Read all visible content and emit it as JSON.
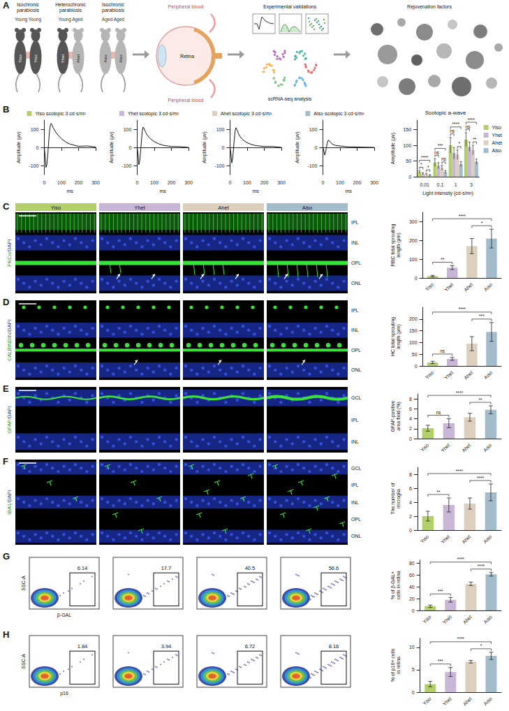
{
  "figure": {
    "panel_letters": [
      "A",
      "B",
      "C",
      "D",
      "E",
      "F",
      "G",
      "H"
    ],
    "parabiosis": [
      {
        "title": "Isochronic parabiosis",
        "subtitle": "Young Young",
        "mice": [
          "Yiso",
          "Yiso"
        ],
        "colors": [
          "#555555",
          "#555555"
        ]
      },
      {
        "title": "Heterochronic parabiosis",
        "subtitle": "Young Aged",
        "mice": [
          "Yhet",
          "Ahet"
        ],
        "colors": [
          "#555555",
          "#b5b5b5"
        ]
      },
      {
        "title": "Isochronic parabiosis",
        "subtitle": "Aged Aged",
        "mice": [
          "Aiso",
          "Aiso"
        ],
        "colors": [
          "#b5b5b5",
          "#b5b5b5"
        ]
      }
    ],
    "eye_labels": [
      "Peripheral blood",
      "Retina",
      "Peripheral blood"
    ],
    "steps": [
      "Experimental validations",
      "scRNA-seq analysis",
      "Rejuvenation factors"
    ],
    "image_panels": [
      {
        "stain": "PKCα/DAPI",
        "columns": [
          {
            "name": "Yiso",
            "color": "#b3cf6a"
          },
          {
            "name": "Yhet",
            "color": "#c9b6d6"
          },
          {
            "name": "Ahet",
            "color": "#dccfbd"
          },
          {
            "name": "Aiso",
            "color": "#a3bccb"
          }
        ],
        "layers": [
          "IPL",
          "INL",
          "OPL",
          "ONL"
        ]
      },
      {
        "stain": "CALBINDIN/DAPI",
        "layers": [
          "IPL",
          "INL",
          "OPL",
          "ONL"
        ]
      },
      {
        "stain": "GFAP/DAPI",
        "layers": [
          "GCL",
          "IPL",
          "INL"
        ]
      },
      {
        "stain": "IBA1/DAPI",
        "layers": [
          "GCL",
          "IPL",
          "INL",
          "OPL",
          "ONL"
        ]
      }
    ],
    "flow_panels": [
      {
        "x_label": "β-GAL",
        "y_label": "SSC-A",
        "gates": [
          6.14,
          17.7,
          40.5,
          56.6
        ]
      },
      {
        "x_label": "p16",
        "y_label": "SSC-A",
        "gates": [
          1.84,
          3.94,
          6.72,
          8.16
        ]
      }
    ]
  },
  "chart_data": [
    {
      "type": "line",
      "legend": "top",
      "x_label": "ms",
      "y_label": "Amplitude (μv)",
      "x": [
        0,
        5,
        10,
        15,
        20,
        25,
        30,
        35,
        40,
        45,
        50,
        60,
        70,
        80,
        100,
        125,
        150,
        200,
        250,
        300
      ],
      "xlim": [
        0,
        300
      ],
      "xticks": [
        0,
        100,
        200,
        300
      ],
      "ylim": [
        -150,
        150
      ],
      "yticks": [
        -100,
        0,
        100
      ],
      "series": [
        {
          "name": "Yiso scotopic 3 cd·s/m²",
          "color": "#b3cf6a",
          "values": [
            0,
            -45,
            -110,
            -95,
            -45,
            20,
            85,
            120,
            132,
            125,
            112,
            95,
            80,
            68,
            48,
            30,
            18,
            6,
            8,
            2
          ]
        }
      ]
    },
    {
      "type": "line",
      "legend": "top",
      "x_label": "ms",
      "y_label": "Amplitude (μv)",
      "x": [
        0,
        5,
        10,
        15,
        20,
        25,
        30,
        35,
        40,
        45,
        50,
        60,
        70,
        80,
        100,
        125,
        150,
        200,
        250,
        300
      ],
      "xlim": [
        0,
        300
      ],
      "xticks": [
        0,
        100,
        200,
        300
      ],
      "ylim": [
        -150,
        150
      ],
      "yticks": [
        -100,
        0,
        100
      ],
      "series": [
        {
          "name": "Yhet scotopic 3 cd·s/m²",
          "color": "#c9b6d6",
          "values": [
            0,
            -35,
            -95,
            -75,
            -25,
            35,
            90,
            112,
            105,
            95,
            82,
            66,
            55,
            45,
            32,
            20,
            12,
            5,
            4,
            0
          ]
        }
      ]
    },
    {
      "type": "line",
      "legend": "top",
      "x_label": "ms",
      "y_label": "Amplitude (μv)",
      "x": [
        0,
        5,
        10,
        15,
        20,
        25,
        30,
        35,
        40,
        45,
        50,
        60,
        70,
        80,
        100,
        125,
        150,
        200,
        250,
        300
      ],
      "xlim": [
        0,
        300
      ],
      "xticks": [
        0,
        100,
        200,
        300
      ],
      "ylim": [
        -150,
        150
      ],
      "yticks": [
        -100,
        0,
        100
      ],
      "series": [
        {
          "name": "Ahet scotopic 3 cd·s/m²",
          "color": "#dccfbd",
          "values": [
            0,
            -30,
            -85,
            -65,
            -15,
            45,
            92,
            108,
            98,
            88,
            74,
            58,
            47,
            38,
            26,
            16,
            10,
            5,
            5,
            0
          ]
        }
      ]
    },
    {
      "type": "line",
      "legend": "top",
      "x_label": "ms",
      "y_label": "Amplitude (μv)",
      "x": [
        0,
        5,
        10,
        15,
        20,
        25,
        30,
        35,
        40,
        45,
        50,
        60,
        70,
        80,
        100,
        125,
        150,
        200,
        250,
        300
      ],
      "xlim": [
        0,
        300
      ],
      "xticks": [
        0,
        100,
        200,
        300
      ],
      "ylim": [
        -150,
        150
      ],
      "yticks": [
        -100,
        0,
        100
      ],
      "series": [
        {
          "name": "Aiso scotopic 3 cd·s/m²",
          "color": "#a3bccb",
          "values": [
            0,
            -15,
            -42,
            -30,
            -5,
            22,
            38,
            40,
            34,
            28,
            22,
            16,
            12,
            10,
            8,
            5,
            3,
            2,
            1,
            0
          ]
        }
      ]
    },
    {
      "type": "bar",
      "title": "Scotopic a-wave",
      "x_label": "Light intensity (cd·s/m²)",
      "y_label": "Amplitude (μv)",
      "legend": "right",
      "categories": [
        "0.01",
        "0.1",
        "1",
        "3"
      ],
      "ylim": [
        0,
        180
      ],
      "yticks": [
        0,
        50,
        100,
        150
      ],
      "series": [
        {
          "name": "Yiso",
          "color": "#b3cf6a",
          "values": [
            15,
            45,
            100,
            118
          ],
          "errors": [
            4,
            12,
            25,
            22
          ]
        },
        {
          "name": "Yhet",
          "color": "#c9b6d6",
          "values": [
            10,
            35,
            75,
            95
          ],
          "errors": [
            3,
            10,
            18,
            15
          ]
        },
        {
          "name": "Ahet",
          "color": "#dccfbd",
          "values": [
            8,
            28,
            70,
            85
          ],
          "errors": [
            3,
            8,
            15,
            15
          ]
        },
        {
          "name": "Aiso",
          "color": "#a3bccb",
          "values": [
            5,
            15,
            40,
            48
          ],
          "errors": [
            2,
            5,
            8,
            8
          ]
        }
      ],
      "significance": [
        {
          "category": "0.01",
          "from": "Yiso",
          "to": "Yhet",
          "label": "*"
        },
        {
          "category": "0.01",
          "from": "Ahet",
          "to": "Aiso",
          "label": "*"
        },
        {
          "category": "0.01",
          "from": "Yiso",
          "to": "Aiso",
          "label": "****"
        },
        {
          "category": "0.1",
          "from": "Yiso",
          "to": "Yhet",
          "label": "ns"
        },
        {
          "category": "0.1",
          "from": "Ahet",
          "to": "Aiso",
          "label": "ns"
        },
        {
          "category": "0.1",
          "from": "Yiso",
          "to": "Aiso",
          "label": "***"
        },
        {
          "category": "1",
          "from": "Yiso",
          "to": "Yhet",
          "label": "ns"
        },
        {
          "category": "1",
          "from": "Ahet",
          "to": "Aiso",
          "label": "*"
        },
        {
          "category": "1",
          "from": "Yiso",
          "to": "Aiso",
          "label": "****"
        },
        {
          "category": "3",
          "from": "Yiso",
          "to": "Yhet",
          "label": "ns"
        },
        {
          "category": "3",
          "from": "Ahet",
          "to": "Aiso",
          "label": "**"
        },
        {
          "category": "3",
          "from": "Yiso",
          "to": "Aiso",
          "label": "****"
        }
      ]
    },
    {
      "type": "bar",
      "y_label": "RBC total sprouting length (μm)",
      "categories": [
        "Yiso",
        "Yhet",
        "Ahet",
        "Aiso"
      ],
      "values": [
        10,
        55,
        170,
        210
      ],
      "errors": [
        4,
        10,
        40,
        50
      ],
      "colors": [
        "#b3cf6a",
        "#c9b6d6",
        "#dccfbd",
        "#a3bccb"
      ],
      "ylim": [
        0,
        350
      ],
      "yticks": [
        0,
        100,
        200,
        300
      ],
      "significance": [
        {
          "from": "Yiso",
          "to": "Yhet",
          "label": "**"
        },
        {
          "from": "Ahet",
          "to": "Aiso",
          "label": "*"
        },
        {
          "from": "Yiso",
          "to": "Aiso",
          "label": "****"
        }
      ]
    },
    {
      "type": "bar",
      "y_label": "HC total sprouting length (μm)",
      "categories": [
        "Yiso",
        "Yhet",
        "Ahet",
        "Aiso"
      ],
      "values": [
        15,
        30,
        95,
        145
      ],
      "errors": [
        5,
        6,
        30,
        40
      ],
      "colors": [
        "#b3cf6a",
        "#c9b6d6",
        "#dccfbd",
        "#a3bccb"
      ],
      "ylim": [
        0,
        250
      ],
      "yticks": [
        0,
        50,
        100,
        150,
        200
      ],
      "significance": [
        {
          "from": "Yiso",
          "to": "Yhet",
          "label": "ns"
        },
        {
          "from": "Ahet",
          "to": "Aiso",
          "label": "***"
        },
        {
          "from": "Yiso",
          "to": "Aiso",
          "label": "****"
        }
      ]
    },
    {
      "type": "bar",
      "y_label": "GFAP-positive area field (%)",
      "categories": [
        "Yiso",
        "Yhet",
        "Ahet",
        "Aiso"
      ],
      "values": [
        2.1,
        3.1,
        4.3,
        5.8
      ],
      "errors": [
        0.6,
        0.9,
        0.8,
        0.8
      ],
      "colors": [
        "#b3cf6a",
        "#c9b6d6",
        "#dccfbd",
        "#a3bccb"
      ],
      "ylim": [
        0,
        9
      ],
      "yticks": [
        0,
        2,
        4,
        6,
        8
      ],
      "significance": [
        {
          "from": "Yiso",
          "to": "Yhet",
          "label": "ns"
        },
        {
          "from": "Ahet",
          "to": "Aiso",
          "label": "**"
        },
        {
          "from": "Yiso",
          "to": "Aiso",
          "label": "****"
        }
      ]
    },
    {
      "type": "bar",
      "y_label": "The number of microglia",
      "categories": [
        "Yiso",
        "Yhet",
        "Ahet",
        "Aiso"
      ],
      "values": [
        2.0,
        3.6,
        3.8,
        5.4
      ],
      "errors": [
        0.7,
        1.0,
        0.8,
        1.2
      ],
      "colors": [
        "#b3cf6a",
        "#c9b6d6",
        "#dccfbd",
        "#a3bccb"
      ],
      "ylim": [
        0,
        9
      ],
      "yticks": [
        0,
        2,
        4,
        6,
        8
      ],
      "significance": [
        {
          "from": "Yiso",
          "to": "Yhet",
          "label": "**"
        },
        {
          "from": "Ahet",
          "to": "Aiso",
          "label": "****"
        },
        {
          "from": "Yiso",
          "to": "Aiso",
          "label": "****"
        }
      ]
    },
    {
      "type": "bar",
      "y_label": "% of β-GAL+ cells in retina",
      "categories": [
        "Yiso",
        "Yhet",
        "Ahet",
        "Aiso"
      ],
      "values": [
        7,
        18,
        45,
        61
      ],
      "errors": [
        2,
        4,
        3,
        3
      ],
      "colors": [
        "#b3cf6a",
        "#c9b6d6",
        "#dccfbd",
        "#a3bccb"
      ],
      "ylim": [
        0,
        85
      ],
      "yticks": [
        0,
        20,
        40,
        60,
        80
      ],
      "significance": [
        {
          "from": "Yiso",
          "to": "Yhet",
          "label": "***"
        },
        {
          "from": "Ahet",
          "to": "Aiso",
          "label": "****"
        },
        {
          "from": "Yiso",
          "to": "Aiso",
          "label": "****"
        }
      ]
    },
    {
      "type": "bar",
      "y_label": "% of p16+ cells in retina",
      "categories": [
        "Yiso",
        "Yhet",
        "Ahet",
        "Aiso"
      ],
      "values": [
        1.8,
        4.5,
        6.8,
        8.1
      ],
      "errors": [
        0.6,
        1.0,
        0.3,
        0.8
      ],
      "colors": [
        "#b3cf6a",
        "#c9b6d6",
        "#dccfbd",
        "#a3bccb"
      ],
      "ylim": [
        0,
        12
      ],
      "yticks": [
        0,
        5,
        10
      ],
      "significance": [
        {
          "from": "Yiso",
          "to": "Yhet",
          "label": "***"
        },
        {
          "from": "Ahet",
          "to": "Aiso",
          "label": "*"
        },
        {
          "from": "Yiso",
          "to": "Aiso",
          "label": "****"
        }
      ]
    }
  ]
}
